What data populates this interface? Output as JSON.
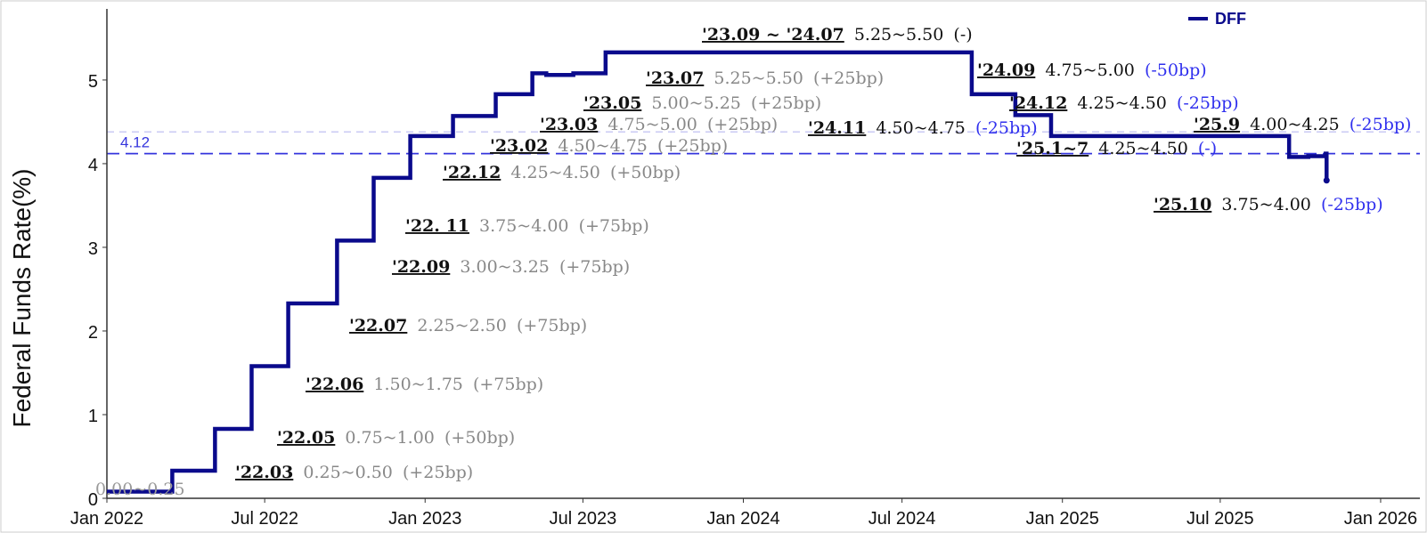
{
  "chart_data": {
    "type": "line",
    "step": true,
    "ylabel": "Federal Funds Rate(%)",
    "xlabel": "",
    "x_start": "2022-01-01",
    "x_end": "2026-02-15",
    "ylim": [
      0,
      5.85
    ],
    "yticks": [
      0,
      1,
      2,
      3,
      4,
      5
    ],
    "xticks": [
      {
        "date": "2022-01-01",
        "label": "Jan 2022"
      },
      {
        "date": "2022-07-01",
        "label": "Jul 2022"
      },
      {
        "date": "2023-01-01",
        "label": "Jan 2023"
      },
      {
        "date": "2023-07-01",
        "label": "Jul 2023"
      },
      {
        "date": "2024-01-01",
        "label": "Jan 2024"
      },
      {
        "date": "2024-07-01",
        "label": "Jul 2024"
      },
      {
        "date": "2025-01-01",
        "label": "Jan 2025"
      },
      {
        "date": "2025-07-01",
        "label": "Jul 2025"
      },
      {
        "date": "2026-01-01",
        "label": "Jan 2026"
      }
    ],
    "grid": false,
    "legend_position": "top-right",
    "series": [
      {
        "name": "DFF",
        "color": "#0a0a8c",
        "points": [
          [
            "2022-01-01",
            0.08
          ],
          [
            "2022-03-17",
            0.33
          ],
          [
            "2022-05-05",
            0.83
          ],
          [
            "2022-06-16",
            1.58
          ],
          [
            "2022-07-28",
            2.33
          ],
          [
            "2022-09-22",
            3.08
          ],
          [
            "2022-11-03",
            3.83
          ],
          [
            "2022-12-15",
            4.33
          ],
          [
            "2023-02-02",
            4.57
          ],
          [
            "2023-03-23",
            4.83
          ],
          [
            "2023-05-04",
            5.08
          ],
          [
            "2023-05-20",
            5.06
          ],
          [
            "2023-06-20",
            5.08
          ],
          [
            "2023-07-27",
            5.33
          ],
          [
            "2024-09-19",
            4.83
          ],
          [
            "2024-11-08",
            4.58
          ],
          [
            "2024-12-19",
            4.33
          ],
          [
            "2025-09-18",
            4.08
          ],
          [
            "2025-10-10",
            4.09
          ],
          [
            "2025-10-30",
            4.12
          ],
          [
            "2025-10-31",
            3.8
          ]
        ]
      }
    ],
    "reference_lines": [
      {
        "value": 4.12,
        "label": "4.12",
        "color": "#3535dd",
        "style": "dashed"
      },
      {
        "value": 4.38,
        "label": "",
        "color": "#b8b8f0",
        "style": "dashed"
      }
    ],
    "annotations": [
      {
        "id": "a0",
        "date": "",
        "rate": "0.00~0.25",
        "change": ""
      },
      {
        "id": "a1",
        "date": "'22.03",
        "rate": "0.25~0.50",
        "change": "(+25bp)"
      },
      {
        "id": "a2",
        "date": "'22.05",
        "rate": "0.75~1.00",
        "change": "(+50bp)"
      },
      {
        "id": "a3",
        "date": "'22.06",
        "rate": "1.50~1.75",
        "change": "(+75bp)"
      },
      {
        "id": "a4",
        "date": "'22.07",
        "rate": "2.25~2.50",
        "change": "(+75bp)"
      },
      {
        "id": "a5",
        "date": "'22.09",
        "rate": "3.00~3.25",
        "change": "(+75bp)"
      },
      {
        "id": "a6",
        "date": "'22. 11",
        "rate": "3.75~4.00",
        "change": "(+75bp)"
      },
      {
        "id": "a7",
        "date": "'22.12",
        "rate": "4.25~4.50",
        "change": "(+50bp)"
      },
      {
        "id": "a8",
        "date": "'23.02",
        "rate": "4.50~4.75",
        "change": "(+25bp)"
      },
      {
        "id": "a9",
        "date": "'23.03",
        "rate": "4.75~5.00",
        "change": "(+25bp)"
      },
      {
        "id": "a10",
        "date": "'23.05",
        "rate": "5.00~5.25",
        "change": "(+25bp)"
      },
      {
        "id": "a11",
        "date": "'23.07",
        "rate": "5.25~5.50",
        "change": "(+25bp)"
      },
      {
        "id": "a12",
        "date": "'23.09 ~ '24.07",
        "rate": "5.25~5.50",
        "change": "(-)"
      },
      {
        "id": "a13",
        "date": "'24.09",
        "rate": "4.75~5.00",
        "change": "(-50bp)"
      },
      {
        "id": "a14",
        "date": "'24.11",
        "rate": "4.50~4.75",
        "change": "(-25bp)"
      },
      {
        "id": "a15",
        "date": "'24.12",
        "rate": "4.25~4.50",
        "change": "(-25bp)"
      },
      {
        "id": "a16",
        "date": "'25.1~7",
        "rate": "4.25~4.50",
        "change": "(-)"
      },
      {
        "id": "a17",
        "date": "'25.9",
        "rate": "4.00~4.25",
        "change": "(-25bp)"
      },
      {
        "id": "a18",
        "date": "'25.10",
        "rate": "3.75~4.00",
        "change": "(-25bp)"
      }
    ]
  },
  "colors": {
    "line": "#0a0a8c",
    "hike_text": "#888888",
    "cut_text": "#3030ee",
    "hold_text": "#111111"
  }
}
